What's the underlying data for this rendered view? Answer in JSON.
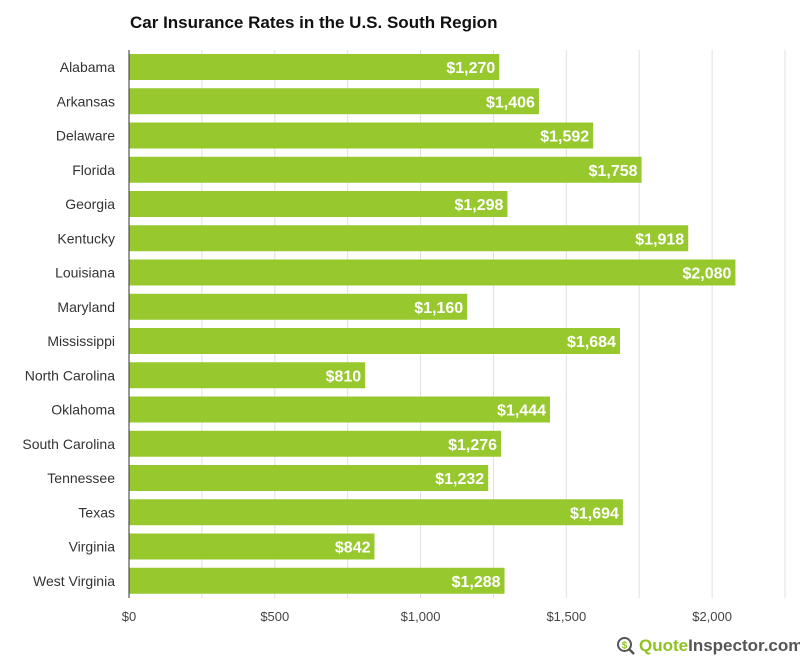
{
  "chart_data": {
    "type": "bar",
    "orientation": "horizontal",
    "title": "Car Insurance Rates in the U.S. South Region",
    "categories": [
      "Alabama",
      "Arkansas",
      "Delaware",
      "Florida",
      "Georgia",
      "Kentucky",
      "Louisiana",
      "Maryland",
      "Mississippi",
      "North Carolina",
      "Oklahoma",
      "South Carolina",
      "Tennessee",
      "Texas",
      "Virginia",
      "West Virginia"
    ],
    "values": [
      1270,
      1406,
      1592,
      1758,
      1298,
      1918,
      2080,
      1160,
      1684,
      810,
      1444,
      1276,
      1232,
      1694,
      842,
      1288
    ],
    "data_labels": [
      "$1,270",
      "$1,406",
      "$1,592",
      "$1,758",
      "$1,298",
      "$1,918",
      "$2,080",
      "$1,160",
      "$1,684",
      "$810",
      "$1,444",
      "$1,276",
      "$1,232",
      "$1,694",
      "$842",
      "$1,288"
    ],
    "xlim": [
      0,
      2250
    ],
    "xticks": [
      0,
      500,
      1000,
      1500,
      2000
    ],
    "xtick_labels": [
      "$0",
      "$500",
      "$1,000",
      "$1,500",
      "$2,000"
    ],
    "grid": true,
    "bar_color": "#97c92e"
  },
  "logo": {
    "part1": "Quote",
    "part2": "Inspector.com",
    "icon": "dollar-magnifier-icon"
  }
}
